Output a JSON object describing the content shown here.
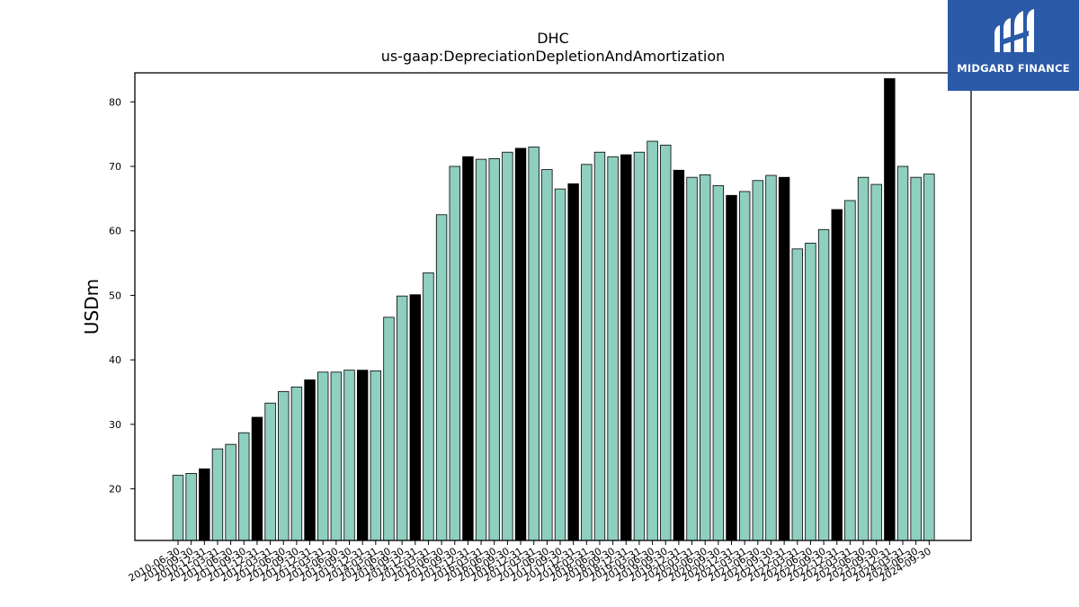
{
  "logo": {
    "text": "MIDGARD FINANCE",
    "color": "#2b5aa8"
  },
  "chart_data": {
    "type": "bar",
    "title": "DHC",
    "subtitle": "us-gaap:DepreciationDepletionAndAmortization",
    "xlabel": "",
    "ylabel": "USDm",
    "ylim": [
      12,
      84.5
    ],
    "yticks": [
      20,
      30,
      40,
      50,
      60,
      70,
      80
    ],
    "grid": false,
    "bar_color": "#8ecfc0",
    "highlight_color": "#000000",
    "categories": [
      "2010-06-30",
      "2010-09-30",
      "2010-12-31",
      "2011-03-31",
      "2011-06-30",
      "2011-09-30",
      "2011-12-31",
      "2012-03-31",
      "2012-06-30",
      "2012-09-30",
      "2012-12-31",
      "2013-03-31",
      "2013-06-30",
      "2013-09-30",
      "2013-12-31",
      "2014-03-31",
      "2014-06-30",
      "2014-09-30",
      "2014-12-31",
      "2015-03-31",
      "2015-06-30",
      "2015-09-30",
      "2015-12-31",
      "2016-03-31",
      "2016-06-30",
      "2016-09-30",
      "2016-12-31",
      "2017-03-31",
      "2017-06-30",
      "2017-09-30",
      "2017-12-31",
      "2018-03-31",
      "2018-06-30",
      "2018-09-30",
      "2018-12-31",
      "2019-03-31",
      "2019-06-30",
      "2019-09-30",
      "2019-12-31",
      "2020-03-31",
      "2020-06-30",
      "2020-09-30",
      "2020-12-31",
      "2021-03-31",
      "2021-06-30",
      "2021-09-30",
      "2021-12-31",
      "2022-03-31",
      "2022-06-30",
      "2022-09-30",
      "2022-12-31",
      "2023-03-31",
      "2023-06-30",
      "2023-09-30",
      "2023-12-31",
      "2024-03-31",
      "2024-06-30",
      "2024-09-30"
    ],
    "values": [
      22.1,
      22.4,
      23.1,
      26.2,
      26.9,
      28.7,
      31.1,
      33.3,
      35.1,
      35.8,
      36.9,
      38.1,
      38.1,
      38.4,
      38.4,
      38.3,
      46.6,
      49.9,
      50.1,
      53.5,
      62.5,
      70.0,
      71.5,
      71.1,
      71.2,
      72.2,
      72.8,
      73.0,
      69.5,
      66.5,
      67.3,
      70.3,
      72.2,
      71.5,
      71.8,
      72.2,
      73.9,
      73.3,
      69.4,
      68.3,
      68.7,
      67.0,
      65.5,
      66.1,
      67.8,
      68.6,
      68.3,
      57.2,
      58.1,
      60.2,
      63.3,
      64.7,
      68.3,
      67.2,
      83.6,
      70.0,
      68.3,
      68.8
    ],
    "highlighted": [
      2,
      6,
      10,
      14,
      18,
      22,
      26,
      30,
      34,
      38,
      42,
      46,
      50,
      54
    ]
  }
}
